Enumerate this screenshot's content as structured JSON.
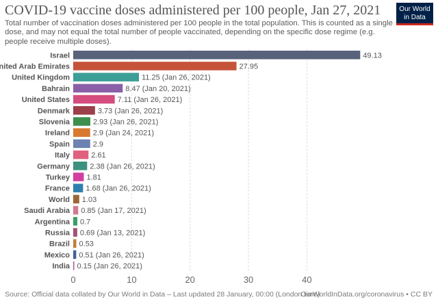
{
  "header": {
    "title": "COVID-19 vaccine doses administered per 100 people, Jan 27, 2021",
    "subtitle": "Total number of vaccination doses administered per 100 people in the total population. This is counted as a single dose, and may not equal the total number of people vaccinated, depending on the specific dose regime (e.g. people receive multiple doses).",
    "logo_line1": "Our World",
    "logo_line2": "in Data"
  },
  "footer": {
    "source": "Source: Official data collated by Our World in Data – Last updated 28 January, 00:00 (London time)",
    "credit": "OurWorldInData.org/coronavirus • CC BY"
  },
  "chart_data": {
    "type": "bar",
    "orientation": "horizontal",
    "title": "COVID-19 vaccine doses administered per 100 people, Jan 27, 2021",
    "xlabel": "",
    "ylabel": "",
    "xlim": [
      0,
      50
    ],
    "xticks": [
      0,
      10,
      20,
      30,
      40
    ],
    "grid": "vertical-dashed",
    "categories": [
      "Israel",
      "United Arab Emirates",
      "United Kingdom",
      "Bahrain",
      "United States",
      "Denmark",
      "Slovenia",
      "Ireland",
      "Spain",
      "Italy",
      "Germany",
      "Turkey",
      "France",
      "World",
      "Saudi Arabia",
      "Argentina",
      "Russia",
      "Brazil",
      "Mexico",
      "India"
    ],
    "values": [
      49.13,
      27.95,
      11.25,
      8.47,
      7.11,
      3.73,
      2.93,
      2.9,
      2.9,
      2.61,
      2.38,
      1.81,
      1.68,
      1.03,
      0.85,
      0.7,
      0.69,
      0.53,
      0.51,
      0.15
    ],
    "value_labels": [
      "49.13",
      "27.95",
      "11.25 (Jan 26, 2021)",
      "8.47 (Jan 20, 2021)",
      "7.11 (Jan 26, 2021)",
      "3.73 (Jan 26, 2021)",
      "2.93 (Jan 26, 2021)",
      "2.9 (Jan 24, 2021)",
      "2.9",
      "2.61",
      "2.38 (Jan 26, 2021)",
      "1.81",
      "1.68 (Jan 26, 2021)",
      "1.03",
      "0.85 (Jan 17, 2021)",
      "0.7",
      "0.69 (Jan 13, 2021)",
      "0.53",
      "0.51 (Jan 26, 2021)",
      "0.15 (Jan 26, 2021)"
    ],
    "colors": [
      "#58627a",
      "#c5533a",
      "#3b9e97",
      "#8a5fa8",
      "#d44d7e",
      "#9c3f4a",
      "#3d8f4e",
      "#d8792f",
      "#6c82b0",
      "#e0627e",
      "#3d9180",
      "#d13fa0",
      "#2e7fb0",
      "#9a6635",
      "#d47a8e",
      "#3a9e69",
      "#a0527a",
      "#c47e3a",
      "#3f63a0",
      "#a05fa5"
    ]
  }
}
